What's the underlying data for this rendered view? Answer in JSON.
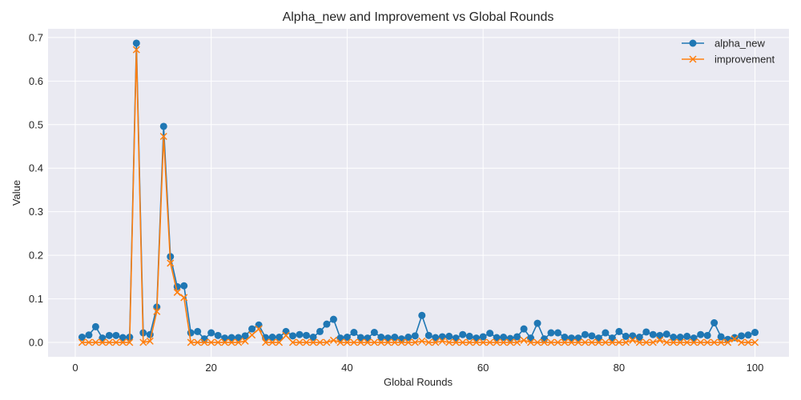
{
  "chart_data": {
    "type": "line",
    "title": "Alpha_new and Improvement vs Global Rounds",
    "xlabel": "Global Rounds",
    "ylabel": "Value",
    "xlim": [
      -4,
      105
    ],
    "ylim": [
      -0.033,
      0.72
    ],
    "xticks": [
      0,
      20,
      40,
      60,
      80,
      100
    ],
    "yticks": [
      0.0,
      0.1,
      0.2,
      0.3,
      0.4,
      0.5,
      0.6,
      0.7
    ],
    "xtick_labels": [
      "0",
      "20",
      "40",
      "60",
      "80",
      "100"
    ],
    "ytick_labels": [
      "0.0",
      "0.1",
      "0.2",
      "0.3",
      "0.4",
      "0.5",
      "0.6",
      "0.7"
    ],
    "grid": true,
    "legend_position": "top-right",
    "background": "#eaeaf2",
    "x": [
      1,
      2,
      3,
      4,
      5,
      6,
      7,
      8,
      9,
      10,
      11,
      12,
      13,
      14,
      15,
      16,
      17,
      18,
      19,
      20,
      21,
      22,
      23,
      24,
      25,
      26,
      27,
      28,
      29,
      30,
      31,
      32,
      33,
      34,
      35,
      36,
      37,
      38,
      39,
      40,
      41,
      42,
      43,
      44,
      45,
      46,
      47,
      48,
      49,
      50,
      51,
      52,
      53,
      54,
      55,
      56,
      57,
      58,
      59,
      60,
      61,
      62,
      63,
      64,
      65,
      66,
      67,
      68,
      69,
      70,
      71,
      72,
      73,
      74,
      75,
      76,
      77,
      78,
      79,
      80,
      81,
      82,
      83,
      84,
      85,
      86,
      87,
      88,
      89,
      90,
      91,
      92,
      93,
      94,
      95,
      96,
      97,
      98,
      99,
      100
    ],
    "series": [
      {
        "name": "alpha_new",
        "color": "#1f77b4",
        "marker": "circle",
        "values": [
          0.012,
          0.017,
          0.036,
          0.01,
          0.016,
          0.016,
          0.011,
          0.012,
          0.687,
          0.022,
          0.018,
          0.081,
          0.496,
          0.197,
          0.128,
          0.13,
          0.022,
          0.025,
          0.008,
          0.022,
          0.016,
          0.01,
          0.011,
          0.011,
          0.015,
          0.031,
          0.04,
          0.011,
          0.012,
          0.012,
          0.025,
          0.015,
          0.018,
          0.016,
          0.012,
          0.025,
          0.042,
          0.053,
          0.01,
          0.012,
          0.023,
          0.011,
          0.01,
          0.023,
          0.012,
          0.01,
          0.012,
          0.008,
          0.012,
          0.015,
          0.062,
          0.016,
          0.011,
          0.013,
          0.014,
          0.01,
          0.018,
          0.014,
          0.01,
          0.013,
          0.021,
          0.011,
          0.012,
          0.009,
          0.013,
          0.031,
          0.01,
          0.044,
          0.008,
          0.022,
          0.022,
          0.012,
          0.01,
          0.01,
          0.018,
          0.015,
          0.01,
          0.022,
          0.01,
          0.025,
          0.014,
          0.015,
          0.012,
          0.024,
          0.018,
          0.016,
          0.019,
          0.012,
          0.012,
          0.014,
          0.01,
          0.018,
          0.016,
          0.045,
          0.013,
          0.007,
          0.011,
          0.015,
          0.017,
          0.023
        ]
      },
      {
        "name": "improvement",
        "color": "#ff7f0e",
        "marker": "x",
        "values": [
          0.0,
          0.0,
          0.0,
          0.0,
          0.0,
          0.0,
          0.0,
          0.0,
          0.672,
          0.0,
          0.003,
          0.071,
          0.473,
          0.182,
          0.115,
          0.103,
          0.0,
          0.0,
          0.0,
          0.0,
          0.0,
          0.0,
          0.0,
          0.0,
          0.003,
          0.017,
          0.031,
          0.0,
          0.0,
          0.0,
          0.016,
          0.0,
          0.0,
          0.0,
          0.0,
          0.0,
          0.0,
          0.005,
          0.0,
          0.0,
          0.0,
          0.0,
          0.0,
          0.0,
          0.0,
          0.0,
          0.0,
          0.0,
          0.0,
          0.0,
          0.003,
          0.0,
          0.0,
          0.003,
          0.0,
          0.0,
          0.0,
          0.0,
          0.0,
          0.0,
          0.0,
          0.0,
          0.0,
          0.0,
          0.0,
          0.005,
          0.0,
          0.0,
          0.0,
          0.0,
          0.0,
          0.0,
          0.0,
          0.0,
          0.0,
          0.0,
          0.0,
          0.0,
          0.0,
          0.0,
          0.0,
          0.005,
          0.0,
          0.0,
          0.0,
          0.005,
          0.0,
          0.0,
          0.0,
          0.0,
          0.0,
          0.0,
          0.0,
          0.0,
          0.0,
          0.0,
          0.008,
          0.0,
          0.0,
          0.0
        ]
      }
    ]
  }
}
